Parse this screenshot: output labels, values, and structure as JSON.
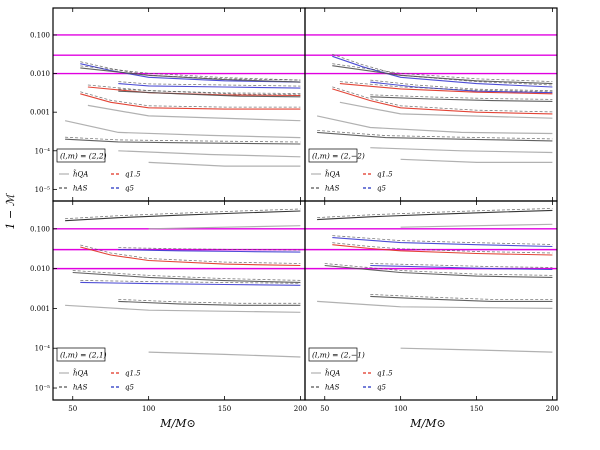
{
  "figure": {
    "ylabel": "1 − ℳ",
    "xlabel": "M/M⊙"
  },
  "chart_data": [
    {
      "type": "line",
      "panel": "top-left",
      "annotation": "(l,m) = (2,2)",
      "xlim": [
        37,
        203
      ],
      "ylim": [
        5e-06,
        0.5
      ],
      "yscale": "log",
      "xticks": [
        50,
        100,
        150,
        200
      ],
      "yticks": [
        {
          "v": 0.1,
          "label": "0.100"
        },
        {
          "v": 0.01,
          "label": "0.010"
        },
        {
          "v": 0.001,
          "label": "0.001"
        },
        {
          "v": 0.0001,
          "label": "10⁻⁴"
        },
        {
          "v": 1e-05,
          "label": "10⁻⁵"
        }
      ],
      "hlines": [
        {
          "y": 0.1,
          "color": "#e000e0"
        },
        {
          "y": 0.03,
          "color": "#e000e0"
        },
        {
          "y": 0.01,
          "color": "#e000e0"
        }
      ],
      "legend": [
        {
          "label": "h̃QA",
          "style": "solid",
          "color": "#b0b0b0"
        },
        {
          "label": "q1.5",
          "style": "dashed",
          "color": "#e03020"
        },
        {
          "label": "hAS",
          "style": "dashed",
          "color": "#555555"
        },
        {
          "label": "q5",
          "style": "dashed",
          "color": "#2030c0"
        }
      ],
      "series": [
        {
          "color": "#3a3ad0",
          "x": [
            55,
            75,
            100,
            150,
            200
          ],
          "y": [
            0.018,
            0.012,
            0.008,
            0.0065,
            0.006
          ]
        },
        {
          "color": "#3a3ad0",
          "x": [
            80,
            100,
            150,
            200
          ],
          "y": [
            0.0055,
            0.0048,
            0.0045,
            0.0042
          ]
        },
        {
          "color": "#e03020",
          "x": [
            55,
            75,
            100,
            150,
            200
          ],
          "y": [
            0.003,
            0.0018,
            0.0013,
            0.0012,
            0.0012
          ]
        },
        {
          "color": "#e03020",
          "x": [
            60,
            100,
            150,
            200
          ],
          "y": [
            0.0045,
            0.0032,
            0.0028,
            0.0027
          ]
        },
        {
          "color": "#505050",
          "x": [
            55,
            100,
            150,
            200
          ],
          "y": [
            0.014,
            0.009,
            0.007,
            0.006
          ]
        },
        {
          "color": "#505050",
          "x": [
            80,
            120,
            160,
            200
          ],
          "y": [
            0.0035,
            0.003,
            0.0026,
            0.0025
          ]
        },
        {
          "color": "#505050",
          "x": [
            45,
            80,
            130,
            200
          ],
          "y": [
            0.0002,
            0.00017,
            0.00016,
            0.00015
          ]
        },
        {
          "color": "#a8a8a8",
          "x": [
            45,
            80,
            140,
            200
          ],
          "y": [
            0.0006,
            0.0003,
            0.00025,
            0.00022
          ]
        },
        {
          "color": "#a8a8a8",
          "x": [
            60,
            100,
            200
          ],
          "y": [
            0.0015,
            0.0008,
            0.0006
          ]
        },
        {
          "color": "#a8a8a8",
          "x": [
            100,
            150,
            200
          ],
          "y": [
            5e-05,
            4e-05,
            4e-05
          ]
        },
        {
          "color": "#a8a8a8",
          "x": [
            80,
            140,
            200
          ],
          "y": [
            0.0001,
            8e-05,
            7e-05
          ]
        }
      ]
    },
    {
      "type": "line",
      "panel": "top-right",
      "annotation": "(l,m) = (2,−2)",
      "xlim": [
        37,
        203
      ],
      "ylim": [
        5e-06,
        0.5
      ],
      "yscale": "log",
      "xticks": [
        50,
        100,
        150,
        200
      ],
      "yticks": [],
      "hlines": [
        {
          "y": 0.1,
          "color": "#e000e0"
        },
        {
          "y": 0.03,
          "color": "#e000e0"
        },
        {
          "y": 0.01,
          "color": "#e000e0"
        }
      ],
      "legend": [
        {
          "label": "h̃QA",
          "style": "solid",
          "color": "#b0b0b0"
        },
        {
          "label": "q1.5",
          "style": "dashed",
          "color": "#e03020"
        },
        {
          "label": "hAS",
          "style": "dashed",
          "color": "#555555"
        },
        {
          "label": "q5",
          "style": "dashed",
          "color": "#2030c0"
        }
      ],
      "series": [
        {
          "color": "#3a3ad0",
          "x": [
            55,
            75,
            100,
            150,
            200
          ],
          "y": [
            0.028,
            0.015,
            0.008,
            0.0055,
            0.0045
          ]
        },
        {
          "color": "#3a3ad0",
          "x": [
            80,
            110,
            150,
            200
          ],
          "y": [
            0.006,
            0.0045,
            0.0035,
            0.0032
          ]
        },
        {
          "color": "#e03020",
          "x": [
            55,
            80,
            100,
            150,
            200
          ],
          "y": [
            0.004,
            0.002,
            0.0013,
            0.001,
            0.0009
          ]
        },
        {
          "color": "#e03020",
          "x": [
            60,
            100,
            150,
            200
          ],
          "y": [
            0.0055,
            0.004,
            0.0033,
            0.003
          ]
        },
        {
          "color": "#505050",
          "x": [
            55,
            100,
            150,
            200
          ],
          "y": [
            0.016,
            0.009,
            0.0065,
            0.0055
          ]
        },
        {
          "color": "#505050",
          "x": [
            80,
            120,
            160,
            200
          ],
          "y": [
            0.0025,
            0.0022,
            0.002,
            0.0019
          ]
        },
        {
          "color": "#505050",
          "x": [
            45,
            90,
            140,
            200
          ],
          "y": [
            0.0003,
            0.00022,
            0.0002,
            0.00018
          ]
        },
        {
          "color": "#a8a8a8",
          "x": [
            45,
            80,
            140,
            200
          ],
          "y": [
            0.0008,
            0.0004,
            0.0003,
            0.00028
          ]
        },
        {
          "color": "#a8a8a8",
          "x": [
            60,
            100,
            200
          ],
          "y": [
            0.0018,
            0.0009,
            0.0007
          ]
        },
        {
          "color": "#a8a8a8",
          "x": [
            100,
            150,
            200
          ],
          "y": [
            6e-05,
            5e-05,
            5e-05
          ]
        },
        {
          "color": "#a8a8a8",
          "x": [
            80,
            140,
            200
          ],
          "y": [
            0.00012,
            0.0001,
            9e-05
          ]
        }
      ]
    },
    {
      "type": "line",
      "panel": "bottom-left",
      "annotation": "(l,m) = (2,1)",
      "xlim": [
        37,
        203
      ],
      "ylim": [
        5e-06,
        0.5
      ],
      "yscale": "log",
      "xticks": [
        50,
        100,
        150,
        200
      ],
      "yticks": [
        {
          "v": 0.1,
          "label": "0.100"
        },
        {
          "v": 0.01,
          "label": "0.010"
        },
        {
          "v": 0.001,
          "label": "0.001"
        },
        {
          "v": 0.0001,
          "label": "10⁻⁴"
        },
        {
          "v": 1e-05,
          "label": "10⁻⁵"
        }
      ],
      "hlines": [
        {
          "y": 0.1,
          "color": "#e000e0"
        },
        {
          "y": 0.03,
          "color": "#e000e0"
        },
        {
          "y": 0.01,
          "color": "#e000e0"
        }
      ],
      "legend": [
        {
          "label": "h̃QA",
          "style": "solid",
          "color": "#b0b0b0"
        },
        {
          "label": "q1.5",
          "style": "dashed",
          "color": "#e03020"
        },
        {
          "label": "hAS",
          "style": "dashed",
          "color": "#555555"
        },
        {
          "label": "q5",
          "style": "dashed",
          "color": "#2030c0"
        }
      ],
      "series": [
        {
          "color": "#202020",
          "x": [
            45,
            80,
            120,
            160,
            200
          ],
          "y": [
            0.16,
            0.19,
            0.22,
            0.25,
            0.28
          ]
        },
        {
          "color": "#e03020",
          "x": [
            55,
            75,
            100,
            150,
            200
          ],
          "y": [
            0.035,
            0.022,
            0.016,
            0.013,
            0.012
          ]
        },
        {
          "color": "#3a3ad0",
          "x": [
            55,
            100,
            150,
            200
          ],
          "y": [
            0.0045,
            0.0042,
            0.004,
            0.0038
          ]
        },
        {
          "color": "#3a3ad0",
          "x": [
            80,
            120,
            160,
            200
          ],
          "y": [
            0.03,
            0.028,
            0.027,
            0.026
          ]
        },
        {
          "color": "#505050",
          "x": [
            50,
            100,
            150,
            200
          ],
          "y": [
            0.008,
            0.006,
            0.005,
            0.0045
          ]
        },
        {
          "color": "#505050",
          "x": [
            80,
            120,
            160,
            200
          ],
          "y": [
            0.0015,
            0.0013,
            0.0012,
            0.0012
          ]
        },
        {
          "color": "#a8a8a8",
          "x": [
            45,
            100,
            200
          ],
          "y": [
            0.0012,
            0.0009,
            0.0008
          ]
        },
        {
          "color": "#a8a8a8",
          "x": [
            100,
            150,
            200
          ],
          "y": [
            8e-05,
            7e-05,
            6e-05
          ]
        },
        {
          "color": "#a8a8a8",
          "x": [
            100,
            150,
            200
          ],
          "y": [
            0.1,
            0.11,
            0.12
          ]
        }
      ]
    },
    {
      "type": "line",
      "panel": "bottom-right",
      "annotation": "(l,m) = (2,−1)",
      "xlim": [
        37,
        203
      ],
      "ylim": [
        5e-06,
        0.5
      ],
      "yscale": "log",
      "xticks": [
        50,
        100,
        150,
        200
      ],
      "yticks": [],
      "hlines": [
        {
          "y": 0.1,
          "color": "#e000e0"
        },
        {
          "y": 0.03,
          "color": "#e000e0"
        },
        {
          "y": 0.01,
          "color": "#e000e0"
        }
      ],
      "legend": [
        {
          "label": "h̃QA",
          "style": "solid",
          "color": "#b0b0b0"
        },
        {
          "label": "q1.5",
          "style": "dashed",
          "color": "#e03020"
        },
        {
          "label": "hAS",
          "style": "dashed",
          "color": "#555555"
        },
        {
          "label": "q5",
          "style": "dashed",
          "color": "#2030c0"
        }
      ],
      "series": [
        {
          "color": "#202020",
          "x": [
            45,
            80,
            120,
            160,
            200
          ],
          "y": [
            0.17,
            0.2,
            0.23,
            0.26,
            0.29
          ]
        },
        {
          "color": "#e03020",
          "x": [
            55,
            80,
            100,
            150,
            200
          ],
          "y": [
            0.04,
            0.032,
            0.028,
            0.024,
            0.022
          ]
        },
        {
          "color": "#3a3ad0",
          "x": [
            55,
            100,
            150,
            200
          ],
          "y": [
            0.06,
            0.045,
            0.04,
            0.036
          ]
        },
        {
          "color": "#3a3ad0",
          "x": [
            80,
            120,
            160,
            200
          ],
          "y": [
            0.012,
            0.011,
            0.01,
            0.0095
          ]
        },
        {
          "color": "#505050",
          "x": [
            50,
            100,
            150,
            200
          ],
          "y": [
            0.012,
            0.008,
            0.0065,
            0.006
          ]
        },
        {
          "color": "#505050",
          "x": [
            80,
            120,
            160,
            200
          ],
          "y": [
            0.002,
            0.0017,
            0.0015,
            0.0015
          ]
        },
        {
          "color": "#a8a8a8",
          "x": [
            45,
            100,
            200
          ],
          "y": [
            0.0015,
            0.0011,
            0.001
          ]
        },
        {
          "color": "#a8a8a8",
          "x": [
            100,
            150,
            200
          ],
          "y": [
            0.0001,
            9e-05,
            8e-05
          ]
        },
        {
          "color": "#a8a8a8",
          "x": [
            100,
            150,
            200
          ],
          "y": [
            0.11,
            0.12,
            0.13
          ]
        }
      ]
    }
  ]
}
